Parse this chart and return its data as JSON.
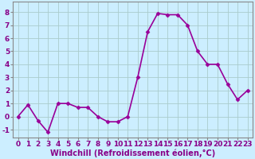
{
  "x": [
    0,
    1,
    2,
    3,
    4,
    5,
    6,
    7,
    8,
    9,
    10,
    11,
    12,
    13,
    14,
    15,
    16,
    17,
    18,
    19,
    20,
    21,
    22,
    23
  ],
  "y": [
    0.0,
    0.9,
    -0.3,
    -1.2,
    1.0,
    1.0,
    0.7,
    0.7,
    0.0,
    -0.4,
    -0.4,
    0.0,
    3.0,
    6.5,
    7.9,
    7.8,
    7.8,
    7.0,
    5.0,
    4.0,
    4.0,
    2.5,
    1.3,
    2.0
  ],
  "line_color": "#990099",
  "marker": "D",
  "marker_size": 2.5,
  "linewidth": 1.2,
  "bg_color": "#cceeff",
  "grid_color": "#aacccc",
  "xlabel": "Windchill (Refroidissement éolien,°C)",
  "xlabel_fontsize": 7,
  "tick_color": "#880088",
  "yticks": [
    -1,
    0,
    1,
    2,
    3,
    4,
    5,
    6,
    7,
    8
  ],
  "ylim": [
    -1.6,
    8.8
  ],
  "xlim": [
    -0.5,
    23.5
  ],
  "tick_fontsize": 6.5,
  "fig_bg_color": "#cceeff",
  "spine_color": "#888888"
}
